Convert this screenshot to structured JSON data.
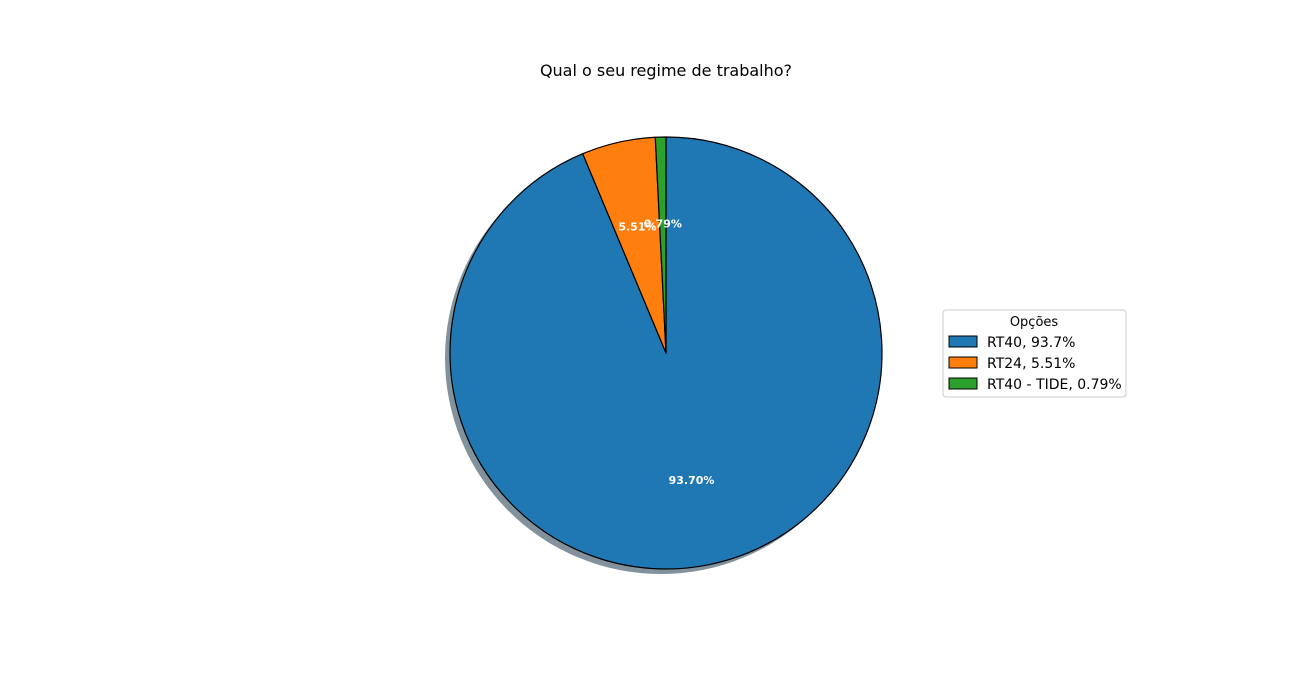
{
  "chart_data": {
    "type": "pie",
    "title": "Qual o seu regime de trabalho?",
    "categories": [
      "RT40",
      "RT24",
      "RT40 - TIDE"
    ],
    "values": [
      93.7,
      5.51,
      0.79
    ],
    "slice_labels": [
      "93.70%",
      "5.51%",
      "0.79%"
    ],
    "colors": [
      "#1f77b4",
      "#ff7f0e",
      "#2ca02c"
    ],
    "shadow": true,
    "start_angle_deg": 90,
    "direction": "clockwise",
    "legend": {
      "title": "Opções",
      "placement": "center-right",
      "entries": [
        "RT40, 93.7%",
        "RT24, 5.51%",
        "RT40 - TIDE, 0.79%"
      ]
    }
  }
}
